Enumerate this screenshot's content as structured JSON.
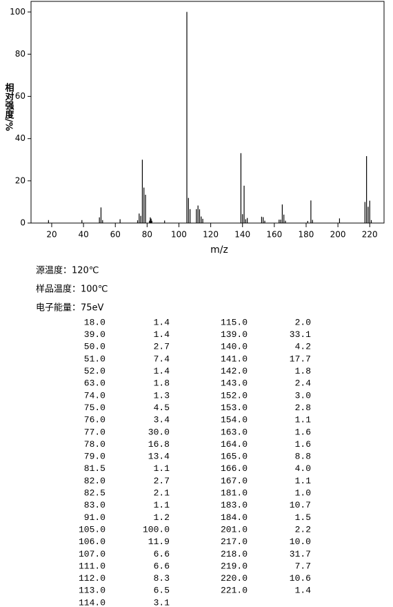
{
  "chart_data": {
    "type": "stick",
    "x_label": "m/z",
    "y_label": "相对强度/%",
    "x": [
      18,
      39,
      50,
      51,
      52,
      63,
      74,
      75,
      76,
      77,
      78,
      79,
      81.5,
      82,
      82.5,
      83,
      91,
      105,
      106,
      107,
      111,
      112,
      113,
      114,
      115,
      139,
      140,
      141,
      142,
      143,
      152,
      153,
      154,
      163,
      164,
      165,
      166,
      167,
      181,
      183,
      184,
      201,
      217,
      218,
      219,
      220,
      221
    ],
    "values": [
      1.4,
      1.4,
      2.7,
      7.4,
      1.4,
      1.8,
      1.3,
      4.5,
      3.4,
      30.0,
      16.8,
      13.4,
      1.1,
      2.7,
      2.1,
      1.1,
      1.2,
      100.0,
      11.9,
      6.6,
      6.6,
      8.3,
      6.5,
      3.1,
      2.0,
      33.1,
      4.2,
      17.7,
      1.8,
      2.4,
      3.0,
      2.8,
      1.1,
      1.6,
      1.6,
      8.8,
      4.0,
      1.1,
      1.0,
      10.7,
      1.5,
      2.2,
      10.0,
      31.7,
      7.7,
      10.6,
      1.4
    ],
    "color": "#000000",
    "xlim": [
      7,
      229
    ],
    "ylim": [
      0,
      105
    ],
    "xticks": [
      20,
      40,
      60,
      80,
      100,
      120,
      140,
      160,
      180,
      200,
      220
    ],
    "yticks": [
      0,
      20,
      40,
      60,
      80,
      100
    ]
  },
  "info": [
    "源温度：120℃",
    "样品温度：100℃",
    "电子能量：75eV"
  ],
  "table": {
    "rows": [
      [
        "18.0",
        "1.4"
      ],
      [
        "39.0",
        "1.4"
      ],
      [
        "50.0",
        "2.7"
      ],
      [
        "51.0",
        "7.4"
      ],
      [
        "52.0",
        "1.4"
      ],
      [
        "63.0",
        "1.8"
      ],
      [
        "74.0",
        "1.3"
      ],
      [
        "75.0",
        "4.5"
      ],
      [
        "76.0",
        "3.4"
      ],
      [
        "77.0",
        "30.0"
      ],
      [
        "78.0",
        "16.8"
      ],
      [
        "79.0",
        "13.4"
      ],
      [
        "81.5",
        "1.1"
      ],
      [
        "82.0",
        "2.7"
      ],
      [
        "82.5",
        "2.1"
      ],
      [
        "83.0",
        "1.1"
      ],
      [
        "91.0",
        "1.2"
      ],
      [
        "105.0",
        "100.0"
      ],
      [
        "106.0",
        "11.9"
      ],
      [
        "107.0",
        "6.6"
      ],
      [
        "111.0",
        "6.6"
      ],
      [
        "112.0",
        "8.3"
      ],
      [
        "113.0",
        "6.5"
      ],
      [
        "114.0",
        "3.1"
      ],
      [
        "115.0",
        "2.0"
      ],
      [
        "139.0",
        "33.1"
      ],
      [
        "140.0",
        "4.2"
      ],
      [
        "141.0",
        "17.7"
      ],
      [
        "142.0",
        "1.8"
      ],
      [
        "143.0",
        "2.4"
      ],
      [
        "152.0",
        "3.0"
      ],
      [
        "153.0",
        "2.8"
      ],
      [
        "154.0",
        "1.1"
      ],
      [
        "163.0",
        "1.6"
      ],
      [
        "164.0",
        "1.6"
      ],
      [
        "165.0",
        "8.8"
      ],
      [
        "166.0",
        "4.0"
      ],
      [
        "167.0",
        "1.1"
      ],
      [
        "181.0",
        "1.0"
      ],
      [
        "183.0",
        "10.7"
      ],
      [
        "184.0",
        "1.5"
      ],
      [
        "201.0",
        "2.2"
      ],
      [
        "217.0",
        "10.0"
      ],
      [
        "218.0",
        "31.7"
      ],
      [
        "219.0",
        "7.7"
      ],
      [
        "220.0",
        "10.6"
      ],
      [
        "221.0",
        "1.4"
      ]
    ]
  }
}
